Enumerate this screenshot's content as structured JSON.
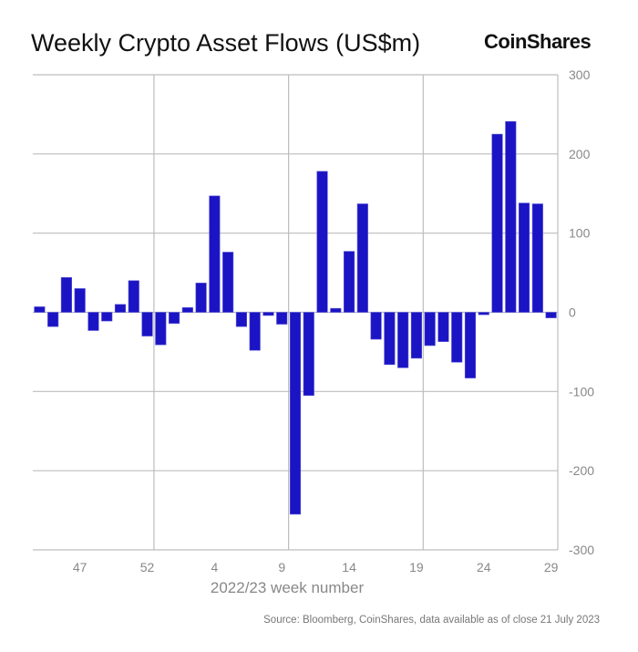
{
  "chart_data": {
    "type": "bar",
    "title": "Weekly Crypto Asset Flows (US$m)",
    "brand": "CoinShares",
    "xlabel": "2022/23 week number",
    "ylabel": "",
    "source": "Source: Bloomberg, CoinShares, data available as of close 21 July 2023",
    "categories": [
      "44",
      "45",
      "46",
      "47",
      "48",
      "49",
      "50",
      "51",
      "52",
      "53",
      "1",
      "2",
      "3",
      "4",
      "5",
      "6",
      "7",
      "8",
      "9",
      "10",
      "11",
      "12",
      "13",
      "14",
      "15",
      "16",
      "17",
      "18",
      "19",
      "20",
      "21",
      "22",
      "23",
      "24",
      "25",
      "26",
      "27",
      "28",
      "29"
    ],
    "values": [
      7,
      -18,
      44,
      30,
      -23,
      -11,
      10,
      40,
      -30,
      -41,
      -14,
      6,
      37,
      147,
      76,
      -18,
      -48,
      -4,
      -15,
      -255,
      -105,
      178,
      5,
      77,
      137,
      -34,
      -66,
      -70,
      -58,
      -42,
      -37,
      -63,
      -83,
      -3,
      225,
      241,
      138,
      137,
      -7
    ],
    "xtick_labels": [
      "47",
      "52",
      "4",
      "9",
      "14",
      "19",
      "24",
      "29"
    ],
    "yticks": [
      300,
      200,
      100,
      0,
      -100,
      -200,
      -300
    ],
    "ylim": [
      -300,
      300
    ],
    "yaxis_position": "right",
    "grid": true,
    "bar_color": "#1a14c4"
  }
}
